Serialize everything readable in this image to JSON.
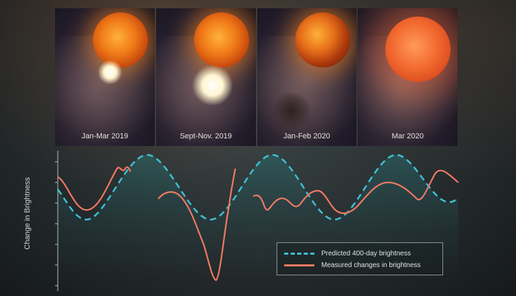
{
  "panels": [
    {
      "label": "Jan-Mar 2019",
      "state": "small-flare"
    },
    {
      "label": "Sept-Nov. 2019",
      "state": "large-flare"
    },
    {
      "label": "Jan-Feb 2020",
      "state": "dust-cloud"
    },
    {
      "label": "Mar 2020",
      "state": "dimmed"
    }
  ],
  "axis": {
    "ylabel": "Change in Brightness"
  },
  "legend": {
    "predicted": "Predicted 400-day brightness",
    "measured": "Measured changes in brightness"
  },
  "colors": {
    "predicted": "#3fc0d2",
    "measured": "#ef7a62",
    "axis": "#b8c0be"
  }
}
